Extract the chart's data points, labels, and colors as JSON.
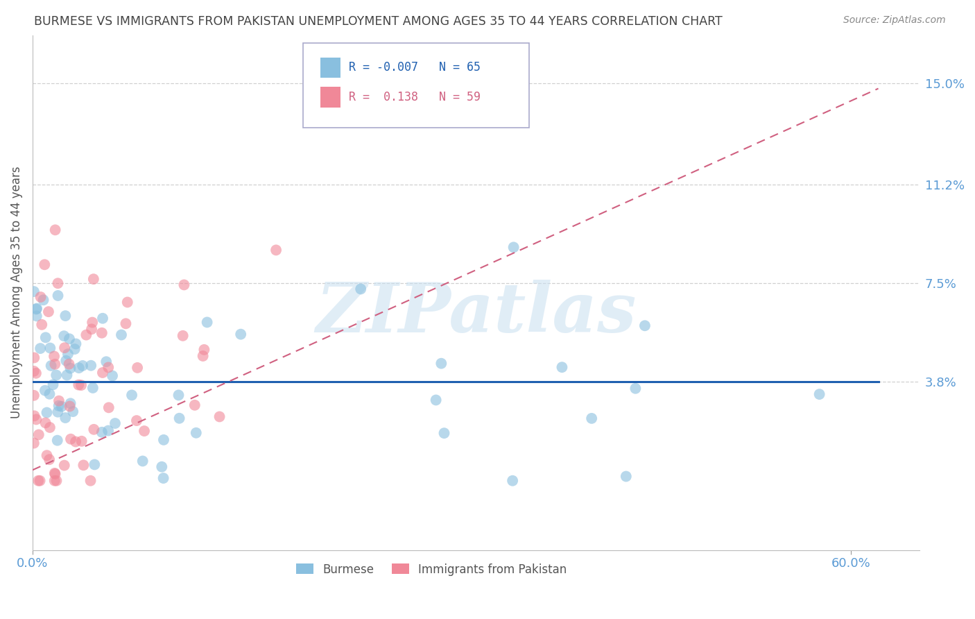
{
  "title": "BURMESE VS IMMIGRANTS FROM PAKISTAN UNEMPLOYMENT AMONG AGES 35 TO 44 YEARS CORRELATION CHART",
  "source": "Source: ZipAtlas.com",
  "ylabel": "Unemployment Among Ages 35 to 44 years",
  "ytick_labels": [
    "3.8%",
    "7.5%",
    "11.2%",
    "15.0%"
  ],
  "ytick_values": [
    0.038,
    0.075,
    0.112,
    0.15
  ],
  "xmin": 0.0,
  "xmax": 0.65,
  "ymin": -0.025,
  "ymax": 0.168,
  "burmese_color": "#89bfdf",
  "pakistan_color": "#f08898",
  "burmese_R": -0.007,
  "burmese_N": 65,
  "pakistan_R": 0.138,
  "pakistan_N": 59,
  "watermark_text": "ZIPatlas",
  "grid_color": "#d0d0d0",
  "title_color": "#444444",
  "tick_color": "#5b9bd5",
  "burmese_line_color": "#2060b0",
  "pakistan_line_color": "#d06080",
  "background_color": "#ffffff"
}
